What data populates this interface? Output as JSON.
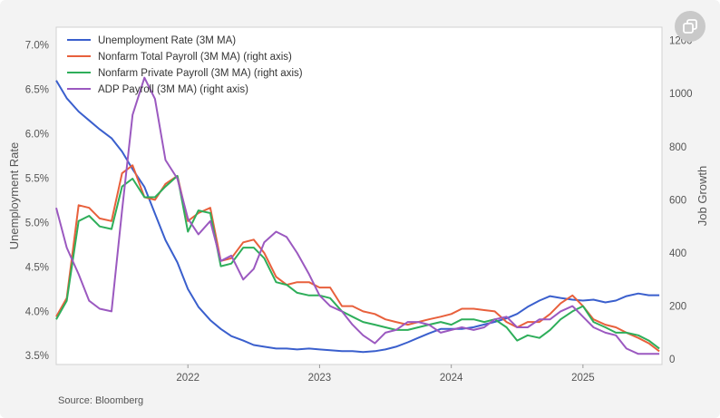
{
  "chart_data": {
    "type": "line",
    "source": "Source: Bloomberg",
    "left_axis": {
      "label": "Unemployment Rate",
      "range": [
        3.4,
        7.2
      ],
      "ticks": [
        3.5,
        4.0,
        4.5,
        5.0,
        5.5,
        6.0,
        6.5,
        7.0
      ],
      "tick_labels": [
        "3.5%",
        "4.0%",
        "4.5%",
        "5.0%",
        "5.5%",
        "6.0%",
        "6.5%",
        "7.0%"
      ]
    },
    "right_axis": {
      "label": "Job Growth",
      "range": [
        -20,
        1250
      ],
      "ticks": [
        0,
        200,
        400,
        600,
        800,
        1000,
        1200
      ],
      "tick_labels": [
        "0",
        "200",
        "400",
        "600",
        "800",
        "1000",
        "1200"
      ]
    },
    "x_axis": {
      "range": [
        2021.0,
        2025.6
      ],
      "ticks": [
        2022,
        2023,
        2024,
        2025
      ],
      "tick_labels": [
        "2022",
        "2023",
        "2024",
        "2025"
      ]
    },
    "series": [
      {
        "name": "Unemployment Rate (3M MA)",
        "color": "#3a5fcd",
        "axis": "left",
        "x": [
          2021.0,
          2021.08,
          2021.17,
          2021.25,
          2021.33,
          2021.42,
          2021.5,
          2021.58,
          2021.67,
          2021.75,
          2021.83,
          2021.92,
          2022.0,
          2022.08,
          2022.17,
          2022.25,
          2022.33,
          2022.42,
          2022.5,
          2022.58,
          2022.67,
          2022.75,
          2022.83,
          2022.92,
          2023.0,
          2023.08,
          2023.17,
          2023.25,
          2023.33,
          2023.42,
          2023.5,
          2023.58,
          2023.67,
          2023.75,
          2023.83,
          2023.92,
          2024.0,
          2024.08,
          2024.17,
          2024.25,
          2024.33,
          2024.42,
          2024.5,
          2024.58,
          2024.67,
          2024.75,
          2024.83,
          2024.92,
          2025.0,
          2025.08,
          2025.17,
          2025.25,
          2025.33,
          2025.42,
          2025.5,
          2025.58
        ],
        "values": [
          6.6,
          6.4,
          6.25,
          6.15,
          6.05,
          5.95,
          5.8,
          5.6,
          5.4,
          5.1,
          4.8,
          4.55,
          4.25,
          4.05,
          3.9,
          3.8,
          3.72,
          3.67,
          3.62,
          3.6,
          3.58,
          3.58,
          3.57,
          3.58,
          3.57,
          3.56,
          3.55,
          3.55,
          3.54,
          3.55,
          3.57,
          3.6,
          3.65,
          3.7,
          3.75,
          3.8,
          3.8,
          3.8,
          3.82,
          3.85,
          3.88,
          3.92,
          3.97,
          4.05,
          4.12,
          4.17,
          4.15,
          4.13,
          4.12,
          4.13,
          4.1,
          4.12,
          4.17,
          4.2,
          4.18,
          4.18
        ]
      },
      {
        "name": "Nonfarm Total Payroll (3M MA) (right axis)",
        "color": "#e8603c",
        "axis": "right",
        "x": [
          2021.0,
          2021.08,
          2021.17,
          2021.25,
          2021.33,
          2021.42,
          2021.5,
          2021.58,
          2021.67,
          2021.75,
          2021.83,
          2021.92,
          2022.0,
          2022.08,
          2022.17,
          2022.25,
          2022.33,
          2022.42,
          2022.5,
          2022.58,
          2022.67,
          2022.75,
          2022.83,
          2022.92,
          2023.0,
          2023.08,
          2023.17,
          2023.25,
          2023.33,
          2023.42,
          2023.5,
          2023.58,
          2023.67,
          2023.75,
          2023.83,
          2023.92,
          2024.0,
          2024.08,
          2024.17,
          2024.25,
          2024.33,
          2024.42,
          2024.5,
          2024.58,
          2024.67,
          2024.75,
          2024.83,
          2024.92,
          2025.0,
          2025.08,
          2025.17,
          2025.25,
          2025.33,
          2025.42,
          2025.5,
          2025.58
        ],
        "values": [
          160,
          230,
          580,
          570,
          530,
          520,
          700,
          730,
          610,
          600,
          660,
          690,
          520,
          550,
          570,
          370,
          380,
          440,
          450,
          400,
          310,
          280,
          290,
          290,
          270,
          270,
          200,
          200,
          180,
          170,
          150,
          140,
          130,
          140,
          150,
          160,
          170,
          190,
          190,
          185,
          180,
          140,
          120,
          140,
          140,
          170,
          210,
          240,
          200,
          150,
          130,
          120,
          100,
          80,
          60,
          30
        ]
      },
      {
        "name": "Nonfarm Private Payroll (3M MA) (right axis)",
        "color": "#2eae5a",
        "axis": "right",
        "x": [
          2021.0,
          2021.08,
          2021.17,
          2021.25,
          2021.33,
          2021.42,
          2021.5,
          2021.58,
          2021.67,
          2021.75,
          2021.83,
          2021.92,
          2022.0,
          2022.08,
          2022.17,
          2022.25,
          2022.33,
          2022.42,
          2022.5,
          2022.58,
          2022.67,
          2022.75,
          2022.83,
          2022.92,
          2023.0,
          2023.08,
          2023.17,
          2023.25,
          2023.33,
          2023.42,
          2023.5,
          2023.58,
          2023.67,
          2023.75,
          2023.83,
          2023.92,
          2024.0,
          2024.08,
          2024.17,
          2024.25,
          2024.33,
          2024.42,
          2024.5,
          2024.58,
          2024.67,
          2024.75,
          2024.83,
          2024.92,
          2025.0,
          2025.08,
          2025.17,
          2025.25,
          2025.33,
          2025.42,
          2025.5,
          2025.58
        ],
        "values": [
          150,
          220,
          520,
          540,
          500,
          490,
          650,
          680,
          610,
          610,
          650,
          690,
          480,
          560,
          550,
          350,
          360,
          420,
          420,
          380,
          290,
          280,
          250,
          240,
          240,
          230,
          180,
          160,
          140,
          130,
          120,
          110,
          110,
          120,
          130,
          140,
          130,
          150,
          150,
          140,
          150,
          120,
          70,
          90,
          80,
          110,
          150,
          180,
          200,
          140,
          120,
          100,
          100,
          90,
          70,
          40
        ]
      },
      {
        "name": "ADP Payroll (3M MA) (right axis)",
        "color": "#9b59c0",
        "axis": "right",
        "x": [
          2021.0,
          2021.08,
          2021.17,
          2021.25,
          2021.33,
          2021.42,
          2021.5,
          2021.58,
          2021.67,
          2021.75,
          2021.83,
          2021.92,
          2022.0,
          2022.08,
          2022.17,
          2022.25,
          2022.33,
          2022.42,
          2022.5,
          2022.58,
          2022.67,
          2022.75,
          2022.83,
          2022.92,
          2023.0,
          2023.08,
          2023.17,
          2023.25,
          2023.33,
          2023.42,
          2023.5,
          2023.58,
          2023.67,
          2023.75,
          2023.83,
          2023.92,
          2024.0,
          2024.08,
          2024.17,
          2024.25,
          2024.33,
          2024.42,
          2024.5,
          2024.58,
          2024.67,
          2024.75,
          2024.83,
          2024.92,
          2025.0,
          2025.08,
          2025.17,
          2025.25,
          2025.33,
          2025.42,
          2025.5,
          2025.58
        ],
        "values": [
          570,
          420,
          320,
          220,
          190,
          180,
          560,
          920,
          1060,
          980,
          750,
          680,
          530,
          470,
          520,
          370,
          390,
          300,
          340,
          440,
          480,
          460,
          400,
          320,
          240,
          200,
          180,
          130,
          90,
          60,
          100,
          110,
          140,
          140,
          130,
          100,
          110,
          120,
          110,
          120,
          150,
          160,
          120,
          120,
          150,
          150,
          180,
          200,
          160,
          120,
          100,
          90,
          40,
          20,
          20,
          20
        ]
      }
    ]
  }
}
